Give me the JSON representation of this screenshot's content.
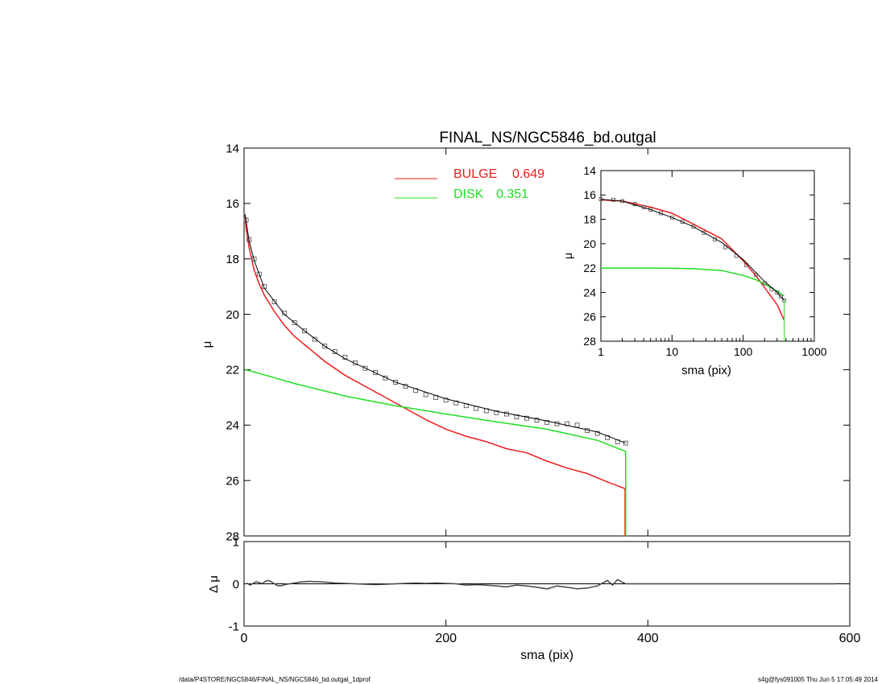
{
  "colors": {
    "bulge": "#ee1c1c",
    "disk": "#1ee01e",
    "data": "#444444",
    "axis": "#000000",
    "model": "#000000"
  },
  "footer": {
    "left": "/data/P4STORE/NGC5846/FINAL_NS/NGC5846_bd.outgal_1dprof",
    "right": "s4g@fys091005  Thu Jun  5 17:05:49 2014"
  },
  "chart_data": [
    {
      "id": "main",
      "type": "line",
      "title": "FINAL_NS/NGC5846_bd.outgal",
      "xlabel": "",
      "ylabel": "μ",
      "xlim": [
        0,
        600
      ],
      "ylim": [
        28,
        14
      ],
      "y_inverted": true,
      "yticks": [
        14,
        16,
        18,
        20,
        22,
        24,
        26,
        28
      ],
      "legend": {
        "placement": "top-center",
        "entries": [
          {
            "label": "BULGE",
            "value": "0.649",
            "color": "#ee1c1c"
          },
          {
            "label": "DISK",
            "value": "0.351",
            "color": "#1ee01e"
          }
        ]
      },
      "series": [
        {
          "name": "BULGE",
          "color": "#ee1c1c",
          "x": [
            1,
            2,
            5,
            10,
            15,
            20,
            30,
            40,
            50,
            60,
            80,
            100,
            120,
            140,
            160,
            180,
            200,
            220,
            240,
            260,
            280,
            300,
            320,
            340,
            360,
            378
          ],
          "y": [
            16.4,
            16.9,
            17.6,
            18.4,
            18.9,
            19.3,
            19.9,
            20.4,
            20.8,
            21.1,
            21.7,
            22.2,
            22.6,
            23.0,
            23.4,
            23.8,
            24.15,
            24.4,
            24.6,
            24.85,
            25.0,
            25.3,
            25.55,
            25.75,
            26.05,
            26.3
          ]
        },
        {
          "name": "DISK",
          "color": "#1ee01e",
          "x": [
            1,
            10,
            50,
            100,
            150,
            200,
            250,
            300,
            350,
            378
          ],
          "y": [
            22.0,
            22.08,
            22.5,
            22.95,
            23.3,
            23.6,
            23.88,
            24.15,
            24.55,
            24.95
          ]
        },
        {
          "name": "data",
          "color": "#444444",
          "marker": "square",
          "x": [
            2,
            5,
            10,
            15,
            20,
            30,
            40,
            50,
            60,
            70,
            80,
            90,
            100,
            110,
            120,
            130,
            140,
            150,
            160,
            170,
            180,
            190,
            200,
            210,
            220,
            230,
            240,
            250,
            260,
            270,
            280,
            290,
            300,
            310,
            320,
            330,
            340,
            350,
            360,
            370,
            378
          ],
          "y": [
            16.6,
            17.3,
            18.0,
            18.55,
            19.0,
            19.55,
            19.95,
            20.3,
            20.6,
            20.9,
            21.15,
            21.35,
            21.55,
            21.75,
            21.95,
            22.1,
            22.3,
            22.45,
            22.6,
            22.75,
            22.9,
            23.0,
            23.1,
            23.2,
            23.3,
            23.4,
            23.48,
            23.55,
            23.6,
            23.7,
            23.75,
            23.82,
            23.9,
            23.95,
            23.95,
            24.0,
            24.2,
            24.3,
            24.45,
            24.6,
            24.65
          ]
        },
        {
          "name": "model",
          "color": "#000000",
          "x": [
            1,
            5,
            10,
            20,
            40,
            60,
            80,
            100,
            150,
            200,
            250,
            300,
            350,
            378
          ],
          "y": [
            16.4,
            17.35,
            18.05,
            19.05,
            20.0,
            20.6,
            21.15,
            21.6,
            22.45,
            23.05,
            23.5,
            23.85,
            24.25,
            24.65
          ]
        }
      ]
    },
    {
      "id": "residuals",
      "type": "scatter",
      "title": "",
      "xlabel": "sma (pix)",
      "ylabel": "Δ μ",
      "xlim": [
        0,
        600
      ],
      "ylim": [
        -1,
        1
      ],
      "yticks": [
        -1,
        0,
        1
      ],
      "xticks": [
        0,
        200,
        400,
        600
      ],
      "series": [
        {
          "name": "residual",
          "color": "#444444",
          "x": [
            3,
            6,
            9,
            12,
            15,
            18,
            21,
            24,
            27,
            30,
            33,
            36,
            39,
            42,
            45,
            50,
            55,
            60,
            65,
            70,
            75,
            80,
            85,
            90,
            100,
            110,
            120,
            130,
            140,
            150,
            160,
            170,
            180,
            190,
            200,
            210,
            220,
            230,
            240,
            250,
            260,
            270,
            280,
            290,
            300,
            310,
            320,
            330,
            340,
            350,
            360,
            365,
            370,
            378,
            390,
            400,
            420,
            440,
            460,
            480,
            500,
            520,
            540,
            560,
            585
          ],
          "y": [
            0.02,
            -0.03,
            0.01,
            0.05,
            0.03,
            0.0,
            0.06,
            0.08,
            0.05,
            0.0,
            -0.04,
            -0.05,
            -0.03,
            -0.01,
            0.0,
            0.02,
            0.04,
            0.05,
            0.06,
            0.05,
            0.05,
            0.04,
            0.03,
            0.02,
            0.01,
            0.0,
            -0.01,
            -0.02,
            -0.01,
            0.0,
            0.01,
            0.02,
            0.01,
            0.02,
            0.01,
            0.0,
            -0.03,
            -0.02,
            -0.03,
            -0.05,
            -0.07,
            -0.03,
            -0.05,
            -0.08,
            -0.12,
            -0.05,
            -0.08,
            -0.12,
            -0.1,
            -0.05,
            0.08,
            -0.03,
            0.1,
            0.0,
            0.0,
            0.0,
            0.0,
            0.0,
            0.0,
            0.0,
            0.0,
            0.0,
            0.0,
            0.0,
            0.0
          ]
        }
      ]
    },
    {
      "id": "inset",
      "type": "line",
      "title": "",
      "xlabel": "sma (pix)",
      "ylabel": "μ",
      "xscale": "log",
      "xlim": [
        1,
        1000
      ],
      "ylim": [
        28,
        14
      ],
      "y_inverted": true,
      "yticks": [
        14,
        16,
        18,
        20,
        22,
        24,
        26,
        28
      ],
      "xticks": [
        1,
        10,
        100,
        1000
      ],
      "series": [
        {
          "name": "BULGE",
          "color": "#ee1c1c",
          "x": [
            1,
            2,
            5,
            10,
            20,
            50,
            100,
            150,
            200,
            300,
            378
          ],
          "y": [
            16.4,
            16.5,
            17.0,
            17.5,
            18.4,
            19.6,
            21.4,
            22.6,
            23.6,
            25.0,
            26.3
          ]
        },
        {
          "name": "DISK",
          "color": "#1ee01e",
          "x": [
            1,
            5,
            10,
            20,
            50,
            100,
            150,
            200,
            300,
            378
          ],
          "y": [
            22.0,
            22.0,
            22.02,
            22.05,
            22.2,
            22.6,
            22.95,
            23.3,
            23.9,
            24.3
          ]
        },
        {
          "name": "data",
          "color": "#555555",
          "marker": "square",
          "x": [
            1,
            1.5,
            2,
            3,
            4,
            5,
            7,
            10,
            14,
            20,
            28,
            40,
            56,
            80,
            110,
            150,
            200,
            250,
            300,
            340,
            378
          ],
          "y": [
            16.35,
            16.4,
            16.5,
            16.75,
            17.0,
            17.2,
            17.5,
            17.85,
            18.2,
            18.6,
            19.1,
            19.65,
            20.3,
            21.0,
            21.75,
            22.55,
            23.25,
            23.75,
            24.0,
            24.35,
            24.65
          ]
        },
        {
          "name": "model",
          "color": "#000000",
          "x": [
            1,
            2,
            5,
            10,
            20,
            50,
            100,
            200,
            300,
            378
          ],
          "y": [
            16.35,
            16.5,
            17.2,
            17.85,
            18.6,
            19.9,
            21.3,
            23.1,
            24.0,
            24.65
          ]
        }
      ]
    }
  ]
}
